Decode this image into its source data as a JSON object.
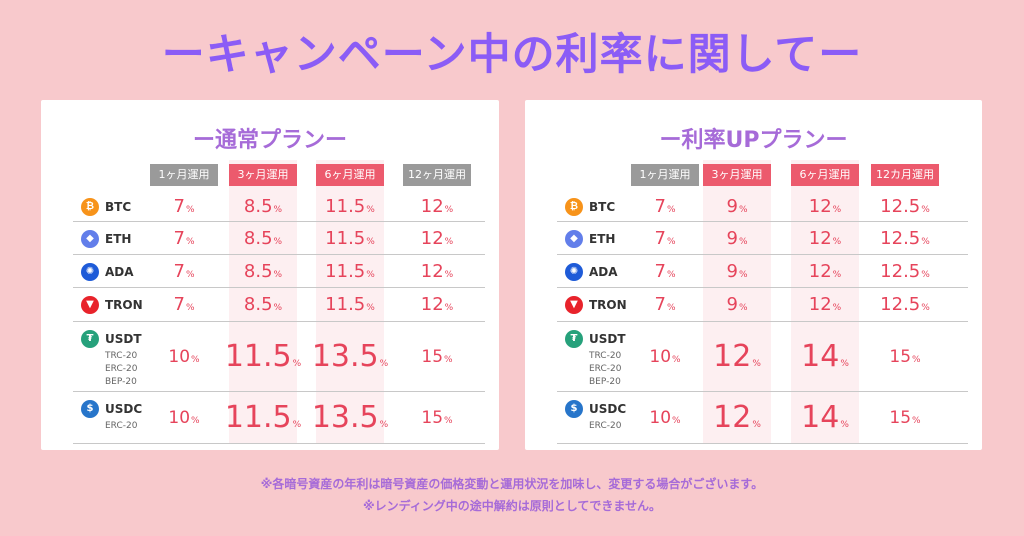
{
  "title": "ーキャンペーン中の利率に関してー",
  "pct_sign": "%",
  "left_plan": {
    "title": "ー通常プランー",
    "headers": [
      "1ヶ月運用",
      "3ヶ月運用",
      "6ヶ月運用",
      "12ヶ月運用"
    ],
    "rows": [
      {
        "coin": "BTC",
        "sub": [],
        "values": [
          "7",
          "8.5",
          "11.5",
          "12"
        ]
      },
      {
        "coin": "ETH",
        "sub": [],
        "values": [
          "7",
          "8.5",
          "11.5",
          "12"
        ]
      },
      {
        "coin": "ADA",
        "sub": [],
        "values": [
          "7",
          "8.5",
          "11.5",
          "12"
        ]
      },
      {
        "coin": "TRON",
        "sub": [],
        "values": [
          "7",
          "8.5",
          "11.5",
          "12"
        ]
      },
      {
        "coin": "USDT",
        "sub": [
          "TRC-20",
          "ERC-20",
          "BEP-20"
        ],
        "values": [
          "10",
          "11.5",
          "13.5",
          "15"
        ]
      },
      {
        "coin": "USDC",
        "sub": [
          "ERC-20"
        ],
        "values": [
          "10",
          "11.5",
          "13.5",
          "15"
        ]
      }
    ]
  },
  "right_plan": {
    "title": "ー利率UPプランー",
    "headers": [
      "1ヶ月運用",
      "3ヶ月運用",
      "6ヶ月運用",
      "12カ月運用"
    ],
    "rows": [
      {
        "coin": "BTC",
        "sub": [],
        "values": [
          "7",
          "9",
          "12",
          "12.5"
        ]
      },
      {
        "coin": "ETH",
        "sub": [],
        "values": [
          "7",
          "9",
          "12",
          "12.5"
        ]
      },
      {
        "coin": "ADA",
        "sub": [],
        "values": [
          "7",
          "9",
          "12",
          "12.5"
        ]
      },
      {
        "coin": "TRON",
        "sub": [],
        "values": [
          "7",
          "9",
          "12",
          "12.5"
        ]
      },
      {
        "coin": "USDT",
        "sub": [
          "TRC-20",
          "ERC-20",
          "BEP-20"
        ],
        "values": [
          "10",
          "12",
          "14",
          "15"
        ]
      },
      {
        "coin": "USDC",
        "sub": [
          "ERC-20"
        ],
        "values": [
          "10",
          "12",
          "14",
          "15"
        ]
      }
    ]
  },
  "coin_icons": {
    "BTC": {
      "glyph": "₿",
      "color": "#f7931a",
      "icon": "bitcoin-icon"
    },
    "ETH": {
      "glyph": "◆",
      "color": "#627eea",
      "icon": "ethereum-icon"
    },
    "ADA": {
      "glyph": "✺",
      "color": "#1e5bd8",
      "icon": "cardano-icon"
    },
    "TRON": {
      "glyph": "▼",
      "color": "#e8232b",
      "icon": "tron-icon"
    },
    "USDT": {
      "glyph": "₮",
      "color": "#26a17b",
      "icon": "tether-icon"
    },
    "USDC": {
      "glyph": "$",
      "color": "#2775ca",
      "icon": "usdc-icon"
    }
  },
  "notes": [
    "※各暗号資産の年利は暗号資産の価格変動と運用状況を加味し、変更する場合がございます。",
    "※レンディング中の途中解約は原則としてできません。"
  ]
}
